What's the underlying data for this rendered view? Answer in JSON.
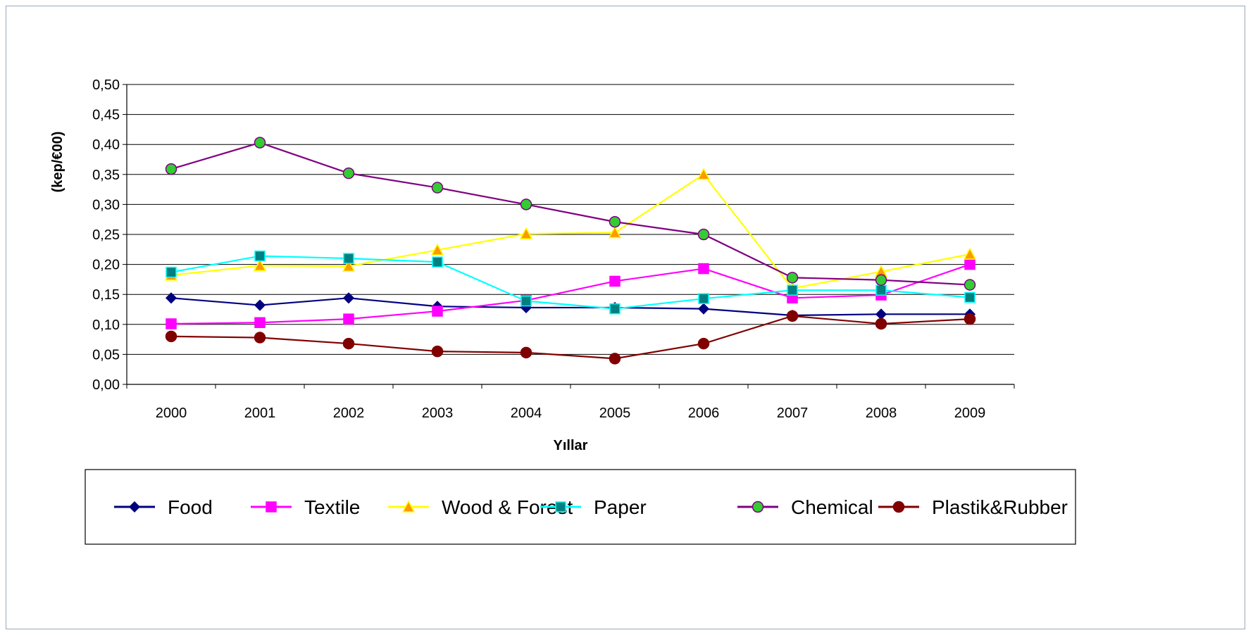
{
  "chart_data": {
    "type": "line",
    "title": "",
    "xlabel": "Yıllar",
    "ylabel": "(kep/€00)",
    "categories": [
      "2000",
      "2001",
      "2002",
      "2003",
      "2004",
      "2005",
      "2006",
      "2007",
      "2008",
      "2009"
    ],
    "ylim": [
      0,
      0.5
    ],
    "yticks": [
      "0,00",
      "0,05",
      "0,10",
      "0,15",
      "0,20",
      "0,25",
      "0,30",
      "0,35",
      "0,40",
      "0,45",
      "0,50"
    ],
    "grid": "horizontal",
    "legend_position": "bottom",
    "series": [
      {
        "name": "Food",
        "line_color": "#000080",
        "marker": "diamond",
        "marker_fill": "#000080",
        "marker_stroke": "#000080",
        "values": [
          0.144,
          0.132,
          0.144,
          0.13,
          0.128,
          0.128,
          0.126,
          0.115,
          0.117,
          0.117
        ]
      },
      {
        "name": "Textile",
        "line_color": "#ff00ff",
        "marker": "square",
        "marker_fill": "#ff00ff",
        "marker_stroke": "#ff00ff",
        "values": [
          0.101,
          0.103,
          0.109,
          0.122,
          0.14,
          0.172,
          0.193,
          0.144,
          0.149,
          0.2
        ]
      },
      {
        "name": "Wood & Forest",
        "line_color": "#ffff00",
        "marker": "triangle",
        "marker_fill": "#ff9900",
        "marker_stroke": "#ffff00",
        "values": [
          0.182,
          0.198,
          0.197,
          0.224,
          0.251,
          0.253,
          0.35,
          0.16,
          0.188,
          0.217
        ]
      },
      {
        "name": "Paper",
        "line_color": "#00ffff",
        "marker": "square",
        "marker_fill": "#008080",
        "marker_stroke": "#00ffff",
        "values": [
          0.187,
          0.214,
          0.21,
          0.204,
          0.139,
          0.126,
          0.143,
          0.157,
          0.157,
          0.145
        ]
      },
      {
        "name": "Chemical",
        "line_color": "#800080",
        "marker": "circle",
        "marker_fill": "#33cc33",
        "marker_stroke": "#800080",
        "values": [
          0.359,
          0.403,
          0.352,
          0.328,
          0.3,
          0.271,
          0.25,
          0.178,
          0.174,
          0.166
        ]
      },
      {
        "name": "Plastik&Rubber",
        "line_color": "#800000",
        "marker": "circle",
        "marker_fill": "#800000",
        "marker_stroke": "#800000",
        "values": [
          0.08,
          0.078,
          0.068,
          0.055,
          0.053,
          0.043,
          0.068,
          0.114,
          0.101,
          0.109
        ]
      }
    ]
  }
}
